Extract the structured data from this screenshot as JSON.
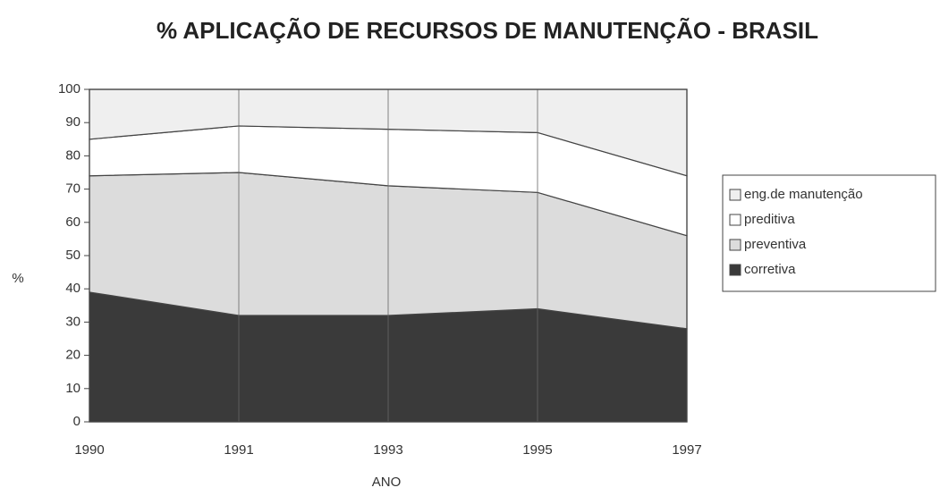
{
  "chart_data": {
    "type": "stacked_area",
    "title": "% APLICAÇÃO DE RECURSOS DE MANUTENÇÃO - BRASIL",
    "x_label": "ANO",
    "y_label": "%",
    "categories": [
      "1990",
      "1991",
      "1993",
      "1995",
      "1997"
    ],
    "series": [
      {
        "name": "corretiva",
        "color": "#3a3a3a",
        "values": [
          39,
          32,
          32,
          34,
          28
        ]
      },
      {
        "name": "preventiva",
        "color": "#dcdcdc",
        "values": [
          35,
          43,
          39,
          35,
          28
        ]
      },
      {
        "name": "preditiva",
        "color": "#ffffff",
        "values": [
          11,
          14,
          17,
          18,
          18
        ]
      },
      {
        "name": "eng.de manutenção",
        "color": "#efefef",
        "values": [
          15,
          11,
          12,
          13,
          26
        ]
      }
    ],
    "ylim": [
      0,
      100
    ],
    "yticks": [
      0,
      10,
      20,
      30,
      40,
      50,
      60,
      70,
      80,
      90,
      100
    ],
    "legend": "right"
  }
}
